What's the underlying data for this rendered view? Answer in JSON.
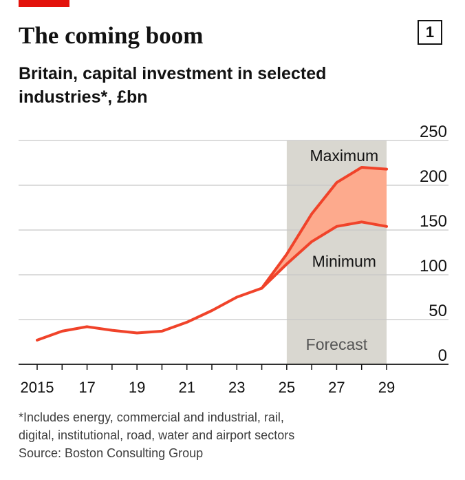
{
  "header": {
    "title": "The coming boom",
    "chart_number": "1",
    "subtitle": "Britain, capital investment in selected industries*, £bn"
  },
  "footer": {
    "note": "*Includes energy, commercial and industrial, rail,",
    "note_line2": "digital, institutional, road, water and airport sectors",
    "source": "Source: Boston Consulting Group"
  },
  "colors": {
    "accent": "#e3120b",
    "line": "#f0432a",
    "band_fill": "#fdaa8d",
    "forecast_shade": "#d9d7d0",
    "grid": "#c7c7c7",
    "axis": "#121212"
  },
  "chart_data": {
    "type": "line",
    "x": [
      2015,
      2016,
      2017,
      2018,
      2019,
      2020,
      2021,
      2022,
      2023,
      2024,
      2025,
      2026,
      2027,
      2028,
      2029
    ],
    "xlim": [
      2015,
      2029
    ],
    "x_tick_values": [
      2015,
      2017,
      2019,
      2021,
      2023,
      2025,
      2027,
      2029
    ],
    "x_tick_labels": [
      "2015",
      "17",
      "19",
      "21",
      "23",
      "25",
      "27",
      "29"
    ],
    "ylim": [
      0,
      250
    ],
    "y_ticks": [
      0,
      50,
      100,
      150,
      200,
      250
    ],
    "y_axis_side": "right",
    "grid": true,
    "series": [
      {
        "name": "Maximum",
        "x": [
          2024,
          2025,
          2026,
          2027,
          2028,
          2029
        ],
        "values": [
          85,
          123,
          168,
          203,
          220,
          218
        ]
      },
      {
        "name": "Minimum",
        "x": [
          2024,
          2025,
          2026,
          2027,
          2028,
          2029
        ],
        "values": [
          85,
          112,
          137,
          154,
          159,
          154
        ]
      },
      {
        "name": "",
        "x": [
          2015,
          2016,
          2017,
          2018,
          2019,
          2020,
          2021,
          2022,
          2023,
          2024
        ],
        "values": [
          27,
          37,
          42,
          38,
          35,
          37,
          47,
          60,
          75,
          85
        ]
      }
    ],
    "shaded_region": {
      "label": "Forecast",
      "x_start": 2025,
      "x_end": 2029
    },
    "annotations": [
      {
        "text": "Maximum",
        "x": 2027.3,
        "y": 227
      },
      {
        "text": "Minimum",
        "x": 2027.3,
        "y": 109
      },
      {
        "text": "Forecast",
        "x": 2027,
        "y": 16
      }
    ]
  }
}
